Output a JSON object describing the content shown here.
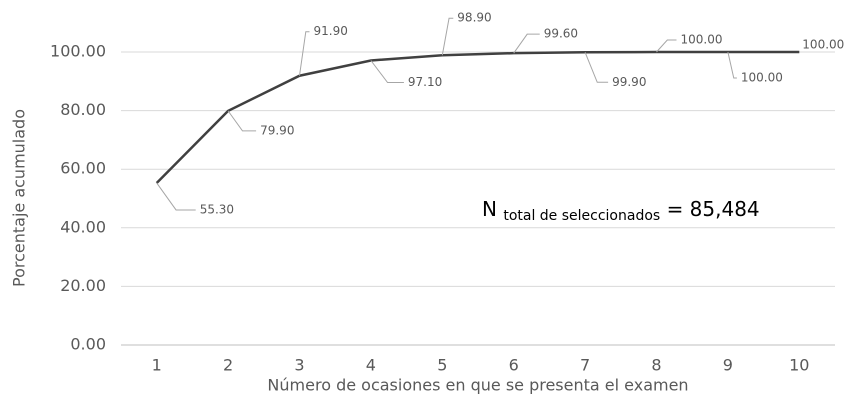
{
  "chart_data": {
    "type": "line",
    "x_label": "Número de ocasiones en que se presenta el examen",
    "y_label": "Porcentaje acumulado",
    "categories": [
      "1",
      "2",
      "3",
      "4",
      "5",
      "6",
      "7",
      "8",
      "9",
      "10"
    ],
    "series": [
      {
        "name": "Porcentaje acumulado",
        "color": "#404040",
        "values": [
          55.3,
          79.9,
          91.9,
          97.1,
          98.9,
          99.6,
          99.9,
          100,
          100,
          100
        ],
        "value_labels": [
          "55.30",
          "79.90",
          "91.90",
          "97.10",
          "98.90",
          "99.60",
          "99.90",
          "100.00",
          "100.00",
          "100.00"
        ]
      }
    ],
    "ylim": [
      0,
      100
    ],
    "yticks": [
      {
        "value": 0,
        "label": "0.00"
      },
      {
        "value": 20,
        "label": "20.00"
      },
      {
        "value": 40,
        "label": "40.00"
      },
      {
        "value": 60,
        "label": "60.00"
      },
      {
        "value": 80,
        "label": "80.00"
      },
      {
        "value": 100,
        "label": "100.00"
      }
    ],
    "grid": true,
    "annotation": {
      "main": "N",
      "subscript": "total de seleccionados",
      "rest": "= 85,484"
    }
  }
}
